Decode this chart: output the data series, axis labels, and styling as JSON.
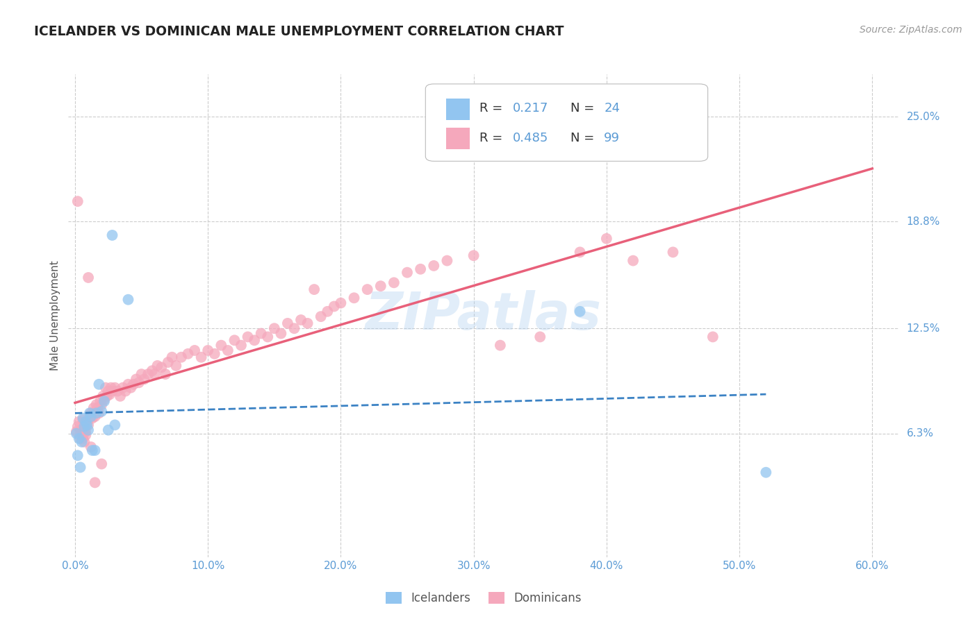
{
  "title": "ICELANDER VS DOMINICAN MALE UNEMPLOYMENT CORRELATION CHART",
  "source": "Source: ZipAtlas.com",
  "ylabel": "Male Unemployment",
  "ytick_labels": [
    "6.3%",
    "12.5%",
    "18.8%",
    "25.0%"
  ],
  "ytick_vals": [
    0.063,
    0.125,
    0.188,
    0.25
  ],
  "xtick_labels": [
    "0.0%",
    "10.0%",
    "20.0%",
    "30.0%",
    "40.0%",
    "50.0%",
    "60.0%"
  ],
  "xtick_vals": [
    0.0,
    0.1,
    0.2,
    0.3,
    0.4,
    0.5,
    0.6
  ],
  "xmin": -0.005,
  "xmax": 0.62,
  "ymin": -0.01,
  "ymax": 0.275,
  "icelander_R": 0.217,
  "icelander_N": 24,
  "dominican_R": 0.485,
  "dominican_N": 99,
  "icelander_color": "#92C5F0",
  "dominican_color": "#F5A8BC",
  "icelander_line_color": "#3B82C4",
  "dominican_line_color": "#E8607A",
  "watermark": "ZIPatlas",
  "background_color": "#FFFFFF",
  "icelander_x": [
    0.001,
    0.002,
    0.003,
    0.004,
    0.005,
    0.006,
    0.007,
    0.008,
    0.009,
    0.01,
    0.011,
    0.012,
    0.013,
    0.015,
    0.016,
    0.018,
    0.02,
    0.022,
    0.025,
    0.028,
    0.03,
    0.04,
    0.38,
    0.52
  ],
  "icelander_y": [
    0.063,
    0.05,
    0.06,
    0.043,
    0.058,
    0.072,
    0.067,
    0.07,
    0.068,
    0.065,
    0.075,
    0.073,
    0.053,
    0.053,
    0.075,
    0.092,
    0.076,
    0.082,
    0.065,
    0.18,
    0.068,
    0.142,
    0.135,
    0.04
  ],
  "dominican_x": [
    0.001,
    0.002,
    0.003,
    0.004,
    0.005,
    0.006,
    0.007,
    0.008,
    0.009,
    0.01,
    0.011,
    0.012,
    0.013,
    0.014,
    0.015,
    0.016,
    0.017,
    0.018,
    0.019,
    0.02,
    0.021,
    0.022,
    0.023,
    0.024,
    0.025,
    0.026,
    0.027,
    0.028,
    0.03,
    0.032,
    0.034,
    0.036,
    0.038,
    0.04,
    0.042,
    0.044,
    0.046,
    0.048,
    0.05,
    0.052,
    0.055,
    0.058,
    0.06,
    0.062,
    0.065,
    0.068,
    0.07,
    0.073,
    0.076,
    0.08,
    0.085,
    0.09,
    0.095,
    0.1,
    0.105,
    0.11,
    0.115,
    0.12,
    0.125,
    0.13,
    0.135,
    0.14,
    0.145,
    0.15,
    0.155,
    0.16,
    0.165,
    0.17,
    0.175,
    0.18,
    0.185,
    0.19,
    0.195,
    0.2,
    0.21,
    0.22,
    0.23,
    0.24,
    0.25,
    0.26,
    0.27,
    0.28,
    0.3,
    0.32,
    0.35,
    0.38,
    0.4,
    0.42,
    0.45,
    0.48,
    0.002,
    0.004,
    0.006,
    0.007,
    0.008,
    0.01,
    0.012,
    0.015,
    0.02
  ],
  "dominican_y": [
    0.064,
    0.067,
    0.07,
    0.065,
    0.063,
    0.071,
    0.065,
    0.064,
    0.07,
    0.068,
    0.072,
    0.075,
    0.072,
    0.078,
    0.073,
    0.08,
    0.078,
    0.075,
    0.082,
    0.08,
    0.085,
    0.083,
    0.09,
    0.085,
    0.088,
    0.086,
    0.09,
    0.088,
    0.09,
    0.088,
    0.085,
    0.09,
    0.088,
    0.092,
    0.09,
    0.092,
    0.095,
    0.093,
    0.098,
    0.095,
    0.098,
    0.1,
    0.098,
    0.103,
    0.102,
    0.098,
    0.105,
    0.108,
    0.103,
    0.108,
    0.11,
    0.112,
    0.108,
    0.112,
    0.11,
    0.115,
    0.112,
    0.118,
    0.115,
    0.12,
    0.118,
    0.122,
    0.12,
    0.125,
    0.122,
    0.128,
    0.125,
    0.13,
    0.128,
    0.148,
    0.132,
    0.135,
    0.138,
    0.14,
    0.143,
    0.148,
    0.15,
    0.152,
    0.158,
    0.16,
    0.162,
    0.165,
    0.168,
    0.115,
    0.12,
    0.17,
    0.178,
    0.165,
    0.17,
    0.12,
    0.2,
    0.06,
    0.06,
    0.058,
    0.062,
    0.155,
    0.055,
    0.034,
    0.045
  ]
}
